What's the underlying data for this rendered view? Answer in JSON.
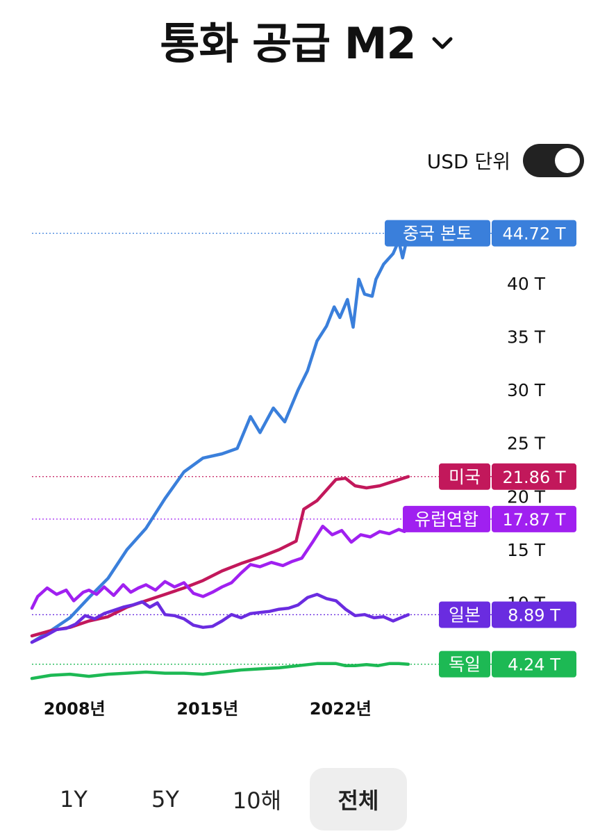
{
  "header": {
    "title": "통화 공급 M2",
    "dropdown_icon": "chevron-down-icon"
  },
  "currency_toggle": {
    "label": "USD 단위",
    "on": true
  },
  "range_tabs": [
    {
      "label": "1Y",
      "active": false
    },
    {
      "label": "5Y",
      "active": false
    },
    {
      "label": "10해",
      "active": false
    },
    {
      "label": "전체",
      "active": true
    }
  ],
  "chart_data": {
    "type": "line",
    "title": "",
    "xlabel": "",
    "ylabel": "",
    "x_ticks": [
      {
        "label": "2008년",
        "year": 2008
      },
      {
        "label": "2015년",
        "year": 2015
      },
      {
        "label": "2022년",
        "year": 2022
      }
    ],
    "y_ticks": [
      {
        "label": "10 T",
        "value": 10
      },
      {
        "label": "15 T",
        "value": 15
      },
      {
        "label": "20 T",
        "value": 20
      },
      {
        "label": "25 T",
        "value": 25
      },
      {
        "label": "30 T",
        "value": 30
      },
      {
        "label": "35 T",
        "value": 35
      },
      {
        "label": "40 T",
        "value": 40
      }
    ],
    "xlim": [
      2006.0,
      2025.0
    ],
    "ylim": [
      2.0,
      46.0
    ],
    "grid": false,
    "series": [
      {
        "name": "중국 본토",
        "value_label": "44.72 T",
        "last": 44.72,
        "color": "#3a7fdb",
        "points": [
          [
            2006.0,
            6.3
          ],
          [
            2007.0,
            7.4
          ],
          [
            2008.0,
            8.6
          ],
          [
            2009.0,
            10.5
          ],
          [
            2010.0,
            12.3
          ],
          [
            2011.0,
            15.0
          ],
          [
            2012.0,
            17.0
          ],
          [
            2013.0,
            19.8
          ],
          [
            2014.0,
            22.3
          ],
          [
            2015.0,
            23.6
          ],
          [
            2016.0,
            24.0
          ],
          [
            2016.8,
            24.5
          ],
          [
            2017.5,
            27.5
          ],
          [
            2018.0,
            26.0
          ],
          [
            2018.7,
            28.3
          ],
          [
            2019.3,
            27.0
          ],
          [
            2020.0,
            30.0
          ],
          [
            2020.5,
            31.8
          ],
          [
            2021.0,
            34.6
          ],
          [
            2021.5,
            36.0
          ],
          [
            2021.9,
            37.8
          ],
          [
            2022.2,
            36.8
          ],
          [
            2022.6,
            38.5
          ],
          [
            2022.9,
            35.9
          ],
          [
            2023.2,
            40.4
          ],
          [
            2023.5,
            39.0
          ],
          [
            2023.9,
            38.8
          ],
          [
            2024.1,
            40.4
          ],
          [
            2024.5,
            41.8
          ],
          [
            2024.8,
            42.4
          ],
          [
            2025.0,
            42.8
          ],
          [
            2025.3,
            44.0
          ],
          [
            2025.5,
            42.4
          ],
          [
            2025.8,
            44.72
          ]
        ]
      },
      {
        "name": "미국",
        "value_label": "21.86 T",
        "last": 21.86,
        "color": "#c2185b",
        "points": [
          [
            2006.0,
            6.9
          ],
          [
            2007.0,
            7.4
          ],
          [
            2008.0,
            7.7
          ],
          [
            2009.0,
            8.3
          ],
          [
            2010.0,
            8.7
          ],
          [
            2011.0,
            9.6
          ],
          [
            2012.0,
            10.2
          ],
          [
            2013.0,
            10.8
          ],
          [
            2014.0,
            11.4
          ],
          [
            2015.0,
            12.1
          ],
          [
            2016.0,
            13.0
          ],
          [
            2017.0,
            13.7
          ],
          [
            2018.0,
            14.3
          ],
          [
            2019.0,
            15.0
          ],
          [
            2019.9,
            15.8
          ],
          [
            2020.3,
            18.8
          ],
          [
            2021.0,
            19.6
          ],
          [
            2022.0,
            21.6
          ],
          [
            2022.5,
            21.7
          ],
          [
            2023.0,
            21.0
          ],
          [
            2023.6,
            20.8
          ],
          [
            2024.3,
            21.0
          ],
          [
            2025.0,
            21.4
          ],
          [
            2025.8,
            21.86
          ]
        ]
      },
      {
        "name": "유럽연합",
        "value_label": "17.87 T",
        "last": 17.87,
        "color": "#a020f0",
        "points": [
          [
            2006.0,
            9.5
          ],
          [
            2006.3,
            10.6
          ],
          [
            2006.8,
            11.4
          ],
          [
            2007.3,
            10.8
          ],
          [
            2007.8,
            11.2
          ],
          [
            2008.2,
            10.2
          ],
          [
            2008.7,
            11.0
          ],
          [
            2009.0,
            11.2
          ],
          [
            2009.4,
            10.8
          ],
          [
            2009.8,
            11.5
          ],
          [
            2010.3,
            10.7
          ],
          [
            2010.8,
            11.7
          ],
          [
            2011.2,
            11.0
          ],
          [
            2011.6,
            11.4
          ],
          [
            2012.0,
            11.7
          ],
          [
            2012.5,
            11.2
          ],
          [
            2013.0,
            12.0
          ],
          [
            2013.5,
            11.5
          ],
          [
            2014.0,
            11.9
          ],
          [
            2014.5,
            10.9
          ],
          [
            2015.0,
            10.6
          ],
          [
            2015.5,
            11.0
          ],
          [
            2016.0,
            11.5
          ],
          [
            2016.5,
            11.9
          ],
          [
            2017.0,
            12.8
          ],
          [
            2017.5,
            13.6
          ],
          [
            2018.0,
            13.4
          ],
          [
            2018.6,
            13.8
          ],
          [
            2019.2,
            13.5
          ],
          [
            2019.7,
            13.9
          ],
          [
            2020.2,
            14.2
          ],
          [
            2020.8,
            15.8
          ],
          [
            2021.3,
            17.2
          ],
          [
            2021.8,
            16.4
          ],
          [
            2022.3,
            16.8
          ],
          [
            2022.8,
            15.7
          ],
          [
            2023.3,
            16.4
          ],
          [
            2023.8,
            16.2
          ],
          [
            2024.3,
            16.7
          ],
          [
            2024.8,
            16.5
          ],
          [
            2025.3,
            16.9
          ],
          [
            2025.6,
            16.7
          ],
          [
            2025.8,
            17.87
          ]
        ]
      },
      {
        "name": "일본",
        "value_label": "8.89 T",
        "last": 8.89,
        "color": "#6a2ce0",
        "points": [
          [
            2006.0,
            6.3
          ],
          [
            2006.7,
            6.9
          ],
          [
            2007.3,
            7.5
          ],
          [
            2007.8,
            7.6
          ],
          [
            2008.3,
            8.0
          ],
          [
            2008.8,
            8.8
          ],
          [
            2009.3,
            8.5
          ],
          [
            2009.8,
            9.0
          ],
          [
            2010.3,
            9.3
          ],
          [
            2010.8,
            9.6
          ],
          [
            2011.3,
            9.8
          ],
          [
            2011.8,
            10.1
          ],
          [
            2012.2,
            9.6
          ],
          [
            2012.6,
            10.0
          ],
          [
            2013.0,
            8.9
          ],
          [
            2013.5,
            8.8
          ],
          [
            2014.0,
            8.5
          ],
          [
            2014.5,
            7.9
          ],
          [
            2015.0,
            7.7
          ],
          [
            2015.5,
            7.8
          ],
          [
            2016.0,
            8.3
          ],
          [
            2016.5,
            8.9
          ],
          [
            2017.0,
            8.6
          ],
          [
            2017.5,
            9.0
          ],
          [
            2018.0,
            9.1
          ],
          [
            2018.5,
            9.2
          ],
          [
            2019.0,
            9.4
          ],
          [
            2019.5,
            9.5
          ],
          [
            2020.0,
            9.8
          ],
          [
            2020.5,
            10.5
          ],
          [
            2021.0,
            10.8
          ],
          [
            2021.5,
            10.4
          ],
          [
            2022.0,
            10.2
          ],
          [
            2022.5,
            9.4
          ],
          [
            2023.0,
            8.8
          ],
          [
            2023.5,
            8.9
          ],
          [
            2024.0,
            8.6
          ],
          [
            2024.5,
            8.7
          ],
          [
            2025.0,
            8.3
          ],
          [
            2025.4,
            8.6
          ],
          [
            2025.8,
            8.89
          ]
        ]
      },
      {
        "name": "독일",
        "value_label": "4.24 T",
        "last": 4.24,
        "color": "#1db954",
        "points": [
          [
            2006.0,
            2.9
          ],
          [
            2007.0,
            3.2
          ],
          [
            2008.0,
            3.3
          ],
          [
            2009.0,
            3.1
          ],
          [
            2010.0,
            3.3
          ],
          [
            2011.0,
            3.4
          ],
          [
            2012.0,
            3.5
          ],
          [
            2013.0,
            3.4
          ],
          [
            2014.0,
            3.4
          ],
          [
            2015.0,
            3.3
          ],
          [
            2016.0,
            3.5
          ],
          [
            2017.0,
            3.7
          ],
          [
            2018.0,
            3.8
          ],
          [
            2019.0,
            3.9
          ],
          [
            2020.0,
            4.1
          ],
          [
            2021.0,
            4.3
          ],
          [
            2022.0,
            4.3
          ],
          [
            2022.5,
            4.1
          ],
          [
            2023.0,
            4.1
          ],
          [
            2023.6,
            4.2
          ],
          [
            2024.2,
            4.1
          ],
          [
            2024.8,
            4.3
          ],
          [
            2025.3,
            4.3
          ],
          [
            2025.8,
            4.24
          ]
        ]
      }
    ]
  }
}
